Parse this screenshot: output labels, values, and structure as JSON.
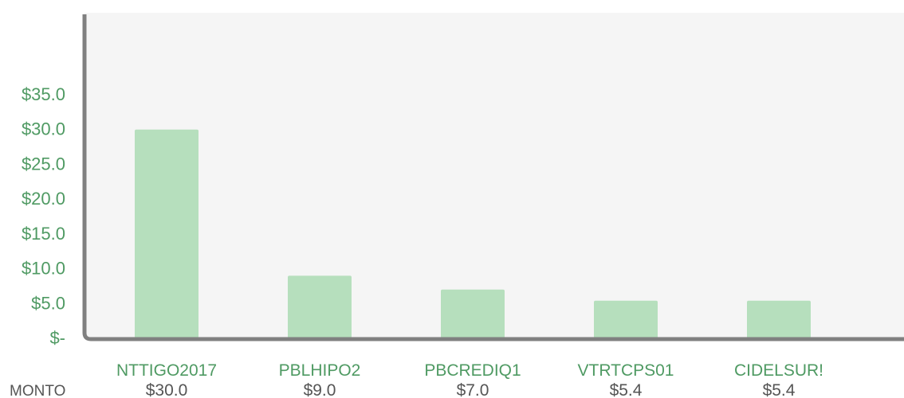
{
  "chart_data": {
    "type": "bar",
    "categories": [
      "NTTIGO2017",
      "PBLHIPO2",
      "PBCREDIQ1",
      "VTRTCPS01",
      "CIDELSUR!"
    ],
    "values": [
      30.0,
      9.0,
      7.0,
      5.4,
      5.4
    ],
    "value_labels": [
      "$30.0",
      "$9.0",
      "$7.0",
      "$5.4",
      "$5.4"
    ],
    "row_label": "MONTO",
    "y_ticks": [
      0,
      5,
      10,
      15,
      20,
      25,
      30,
      35
    ],
    "y_tick_labels": [
      "$-",
      "$5.0",
      "$10.0",
      "$15.0",
      "$20.0",
      "$25.0",
      "$30.0",
      "$35.0"
    ],
    "ylim": [
      0,
      35
    ],
    "grid": false,
    "title": "",
    "xlabel": "",
    "ylabel": "",
    "colors": {
      "bar": "#b6dfbd",
      "plot_background": "#f5f5f5",
      "axis": "#808080",
      "tick_text": "#4f9a63",
      "value_text": "#555555"
    }
  }
}
